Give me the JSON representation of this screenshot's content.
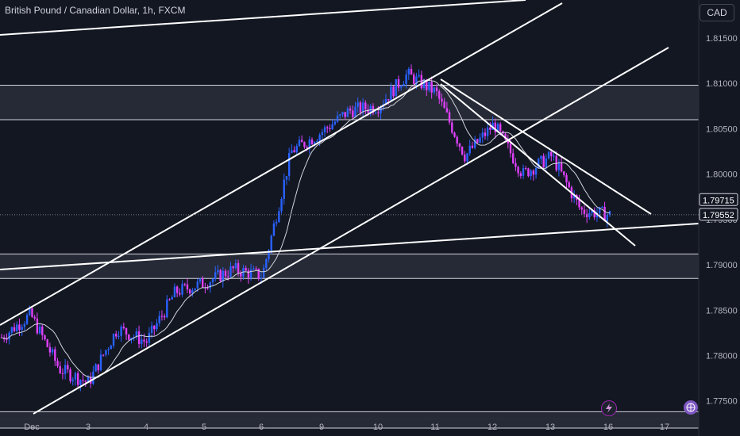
{
  "header": {
    "title": "British Pound / Canadian Dollar, 1h, FXCM",
    "currency_button": "CAD"
  },
  "price_axis": {
    "ticks": [
      "1.81500",
      "1.81000",
      "1.80500",
      "1.80000",
      "1.79500",
      "1.79000",
      "1.78500",
      "1.78000",
      "1.77500"
    ],
    "last_price_label": "1.79715",
    "current_price_label": "1.79552"
  },
  "time_axis": {
    "ticks": [
      "Dec",
      "3",
      "4",
      "5",
      "6",
      "9",
      "10",
      "11",
      "12",
      "13",
      "16",
      "17"
    ]
  },
  "icons": [
    "lightning-icon",
    "globe-icon"
  ],
  "colors": {
    "background": "#131722",
    "up_candle": "#2962ff",
    "down_candle": "#e040fb",
    "zone": "#2a2e39",
    "line": "#ffffff"
  },
  "chart_data": {
    "type": "candlestick",
    "title": "British Pound / Canadian Dollar, 1h, FXCM",
    "xlabel": "",
    "ylabel": "",
    "x_range": [
      "2024-12-02",
      "2024-12-17"
    ],
    "ylim": [
      1.772,
      1.8185
    ],
    "grid": false,
    "legend": "none",
    "zones": [
      {
        "from": 1.806,
        "to": 1.8098
      },
      {
        "from": 1.7885,
        "to": 1.7912
      },
      {
        "from": 1.772,
        "to": 1.7738
      }
    ],
    "price_path": [
      {
        "day": "Dec 2",
        "price": 1.782
      },
      {
        "day": "Dec 2",
        "price": 1.7845
      },
      {
        "day": "Dec 3",
        "price": 1.7785
      },
      {
        "day": "Dec 3",
        "price": 1.777
      },
      {
        "day": "Dec 4",
        "price": 1.783
      },
      {
        "day": "Dec 4",
        "price": 1.7815
      },
      {
        "day": "Dec 5",
        "price": 1.787
      },
      {
        "day": "Dec 5",
        "price": 1.788
      },
      {
        "day": "Dec 6",
        "price": 1.7895
      },
      {
        "day": "Dec 6",
        "price": 1.7888
      },
      {
        "day": "Dec 9",
        "price": 1.8025
      },
      {
        "day": "Dec 9",
        "price": 1.8045
      },
      {
        "day": "Dec 10",
        "price": 1.807
      },
      {
        "day": "Dec 10",
        "price": 1.8075
      },
      {
        "day": "Dec 11",
        "price": 1.811
      },
      {
        "day": "Dec 11",
        "price": 1.809
      },
      {
        "day": "Dec 12",
        "price": 1.802
      },
      {
        "day": "Dec 12",
        "price": 1.8055
      },
      {
        "day": "Dec 13",
        "price": 1.8
      },
      {
        "day": "Dec 13",
        "price": 1.802
      },
      {
        "day": "Dec 16",
        "price": 1.796
      },
      {
        "day": "Dec 16",
        "price": 1.7955
      }
    ]
  }
}
